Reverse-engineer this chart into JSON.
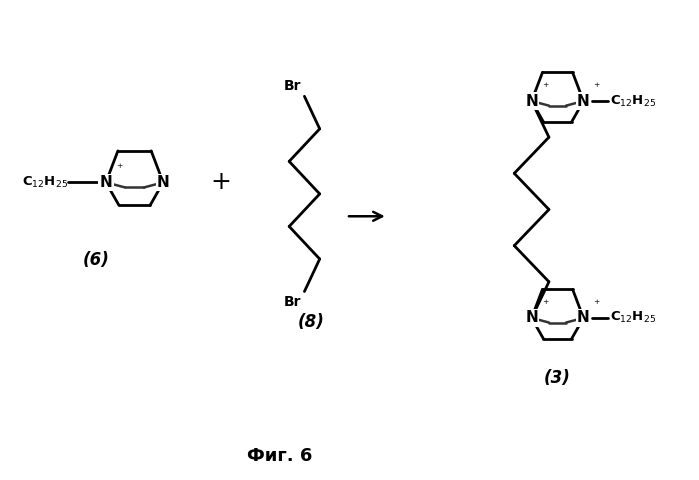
{
  "bg_color": "#ffffff",
  "line_color": "#000000",
  "line_width": 2.0,
  "fig_width": 6.99,
  "fig_height": 4.8,
  "dpi": 100,
  "title": "Фиг. 6",
  "label_6": "(6)",
  "label_8": "(8)",
  "label_3": "(3)"
}
